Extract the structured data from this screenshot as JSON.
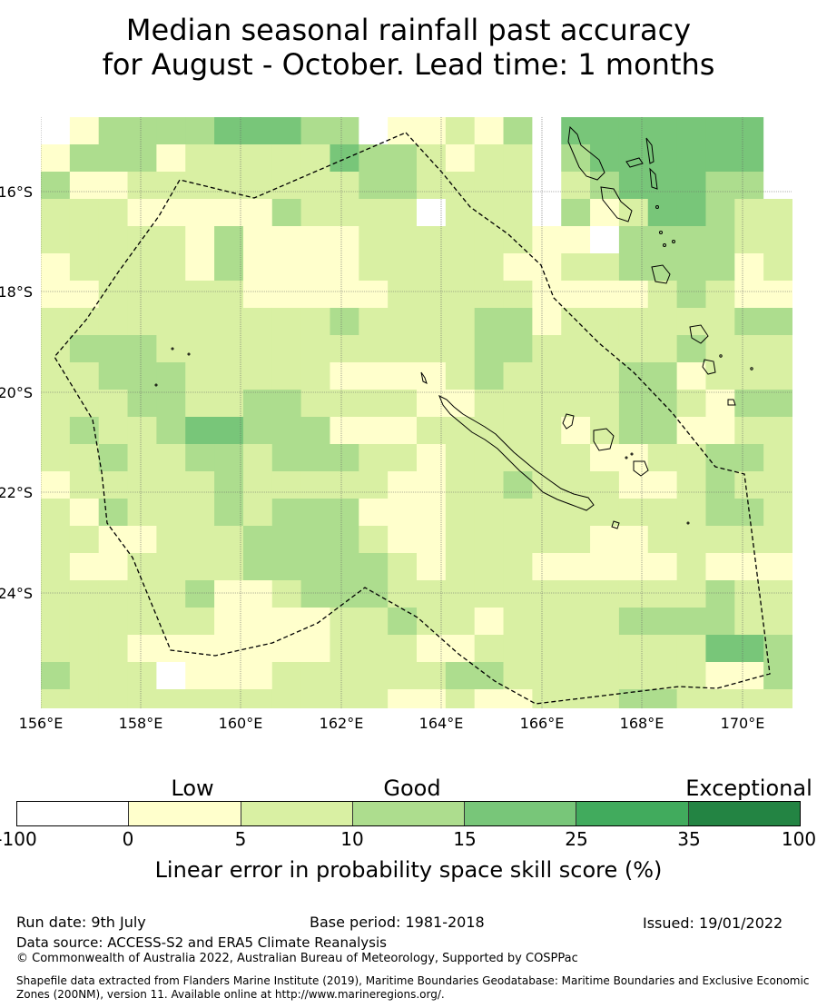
{
  "title": {
    "line1": "Median seasonal rainfall past accuracy",
    "line2": "for August - October. Lead time: 1 months"
  },
  "map": {
    "lat_ticks": [
      "16°S",
      "18°S",
      "20°S",
      "22°S",
      "24°S"
    ],
    "lon_ticks": [
      "156°E",
      "158°E",
      "160°E",
      "162°E",
      "164°E",
      "166°E",
      "168°E",
      "170°E"
    ]
  },
  "legend": {
    "categories": [
      "Low",
      "Good",
      "Exceptional"
    ],
    "bin_edges": [
      "-100",
      "0",
      "5",
      "10",
      "15",
      "25",
      "35",
      "100"
    ],
    "colors": [
      "#ffffff",
      "#ffffcc",
      "#d9f0a3",
      "#addd8e",
      "#78c679",
      "#41ab5d",
      "#238443"
    ],
    "label": "Linear error in probability space skill score (%)"
  },
  "footer": {
    "run_date": "Run date: 9th July",
    "base_period": "Base period: 1981-2018",
    "issued": "Issued: 19/01/2022",
    "data_source": "Data source: ACCESS-S2 and ERA5 Climate Reanalysis",
    "copyright": "© Commonwealth of Australia 2022, Australian Bureau of Meteorology, Supported by COSPPac",
    "shapefile": "Shapefile data extracted from Flanders Marine Institute (2019), Maritime Boundaries Geodatabase: Maritime Boundaries and Exclusive Economic Zones (200NM), version 11. Available online at http://www.marineregions.org/."
  }
}
